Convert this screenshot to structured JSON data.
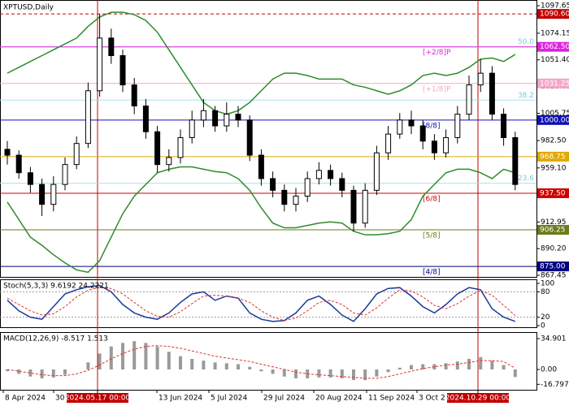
{
  "chart_data": {
    "type": "candlestick",
    "title": "XPTUSD,Daily",
    "ylim": [
      866.06,
      1102.5
    ],
    "yticks": [
      1097.65,
      1074.15,
      {
        "value": 1051.4,
        "label": "1051.40"
      },
      {
        "value": 1028.6,
        "label": "1028.60"
      },
      1005.75,
      {
        "value": 982.5,
        "label": "982.50"
      },
      {
        "value": 959.1,
        "label": "959.10"
      },
      {
        "value": 936.3,
        "label": "936.30"
      },
      912.95,
      {
        "value": 890.2,
        "label": "890.20"
      },
      867.45
    ],
    "open": [
      975,
      970,
      955,
      945,
      928,
      945,
      962,
      980,
      1025,
      1070,
      1055,
      1030,
      1012,
      990,
      962,
      968,
      985,
      1000,
      1008,
      995,
      1005,
      1000,
      970,
      950,
      940,
      928,
      935,
      950,
      957,
      950,
      940,
      912,
      940,
      972,
      988,
      1000,
      995,
      982,
      972,
      985,
      1005,
      1030,
      1040,
      1005,
      985
    ],
    "high": [
      982,
      974,
      960,
      950,
      952,
      968,
      986,
      1032,
      1090.6,
      1078,
      1060,
      1036,
      1018,
      995,
      975,
      992,
      1008,
      1018,
      1012,
      1015,
      1012,
      1004,
      975,
      956,
      945,
      942,
      956,
      964,
      962,
      955,
      944,
      946,
      978,
      995,
      1006,
      1008,
      1000,
      988,
      992,
      1012,
      1038,
      1052,
      1046,
      1010,
      990
    ],
    "low": [
      962,
      950,
      938,
      918,
      922,
      940,
      958,
      976,
      1020,
      1048,
      1024,
      1005,
      984,
      955,
      956,
      963,
      980,
      994,
      990,
      990,
      994,
      965,
      944,
      934,
      922,
      922,
      930,
      945,
      944,
      934,
      905,
      908,
      936,
      966,
      984,
      988,
      975,
      966,
      968,
      980,
      1000,
      1024,
      1000,
      978,
      940
    ],
    "close": [
      970,
      955,
      945,
      928,
      945,
      962,
      980,
      1025,
      1070,
      1055,
      1030,
      1012,
      990,
      962,
      968,
      985,
      1000,
      1008,
      995,
      1005,
      1000,
      970,
      950,
      940,
      928,
      935,
      950,
      957,
      950,
      940,
      912,
      940,
      972,
      988,
      1000,
      995,
      982,
      972,
      985,
      1005,
      1030,
      1040,
      1005,
      985,
      945
    ],
    "bollinger": {
      "color": "#2e8b2e",
      "upper": [
        1040,
        1045,
        1050,
        1055,
        1060,
        1065,
        1070,
        1080,
        1088,
        1092,
        1092,
        1090,
        1085,
        1075,
        1060,
        1045,
        1030,
        1015,
        1008,
        1005,
        1008,
        1015,
        1025,
        1035,
        1040,
        1040,
        1038,
        1035,
        1035,
        1035,
        1030,
        1028,
        1025,
        1022,
        1025,
        1030,
        1038,
        1040,
        1038,
        1040,
        1045,
        1052,
        1053,
        1050,
        1056
      ],
      "lower": [
        930,
        915,
        900,
        893,
        885,
        878,
        872,
        870,
        880,
        900,
        920,
        935,
        945,
        955,
        958,
        960,
        960,
        958,
        956,
        955,
        950,
        940,
        925,
        912,
        908,
        908,
        910,
        912,
        913,
        912,
        905,
        902,
        902,
        903,
        905,
        915,
        935,
        945,
        955,
        958,
        958,
        955,
        950,
        958,
        955
      ]
    },
    "levels": [
      {
        "value": 1090.6,
        "label": "1090.60",
        "color": "#c00000",
        "dashed": true
      },
      {
        "value": 1062.5,
        "label": "1062.50",
        "color": "#e020e0",
        "name": "[+2/8]P"
      },
      {
        "value": 1031.25,
        "label": "1031.25",
        "color": "#f4a8c8",
        "name": "[+1/8]P"
      },
      {
        "value": 1000,
        "label": "1000.00",
        "color": "#1010b0",
        "name": "[8/8]"
      },
      {
        "value": 968.75,
        "label": "968.75",
        "color": "#e0a800"
      },
      {
        "value": 937.5,
        "label": "937.50",
        "color": "#d00000",
        "name": "[6/8]"
      },
      {
        "value": 906.25,
        "label": "906.25",
        "color": "#6b7a1a",
        "name": "[5/8]"
      },
      {
        "value": 875,
        "label": "875.00",
        "color": "#000080",
        "name": "[4/8]"
      }
    ],
    "fib": [
      {
        "ratio": {
          "value": 50,
          "label": "50.0"
        },
        "price": 1062.5
      },
      {
        "ratio": 38.2,
        "price": 1017
      },
      {
        "ratio": 23.6,
        "price": 946
      }
    ],
    "stochastic": {
      "title": "Stoch(5,3,3) 9.6192 24.2221",
      "ylim": [
        -3.8,
        109.6
      ],
      "yticks": [
        100,
        80,
        20,
        0
      ],
      "k": {
        "color": "#1a3a9a",
        "values": [
          60,
          35,
          20,
          15,
          45,
          75,
          85,
          92,
          95,
          80,
          50,
          30,
          20,
          15,
          30,
          55,
          75,
          80,
          60,
          70,
          65,
          30,
          15,
          10,
          12,
          30,
          60,
          70,
          50,
          25,
          10,
          40,
          75,
          88,
          90,
          70,
          45,
          30,
          50,
          75,
          90,
          85,
          40,
          20,
          10
        ]
      },
      "d": {
        "color": "#e03030",
        "values": [
          65,
          50,
          35,
          25,
          28,
          45,
          68,
          84,
          90,
          88,
          75,
          55,
          35,
          22,
          20,
          33,
          52,
          70,
          72,
          70,
          65,
          55,
          35,
          20,
          12,
          18,
          35,
          55,
          60,
          50,
          30,
          25,
          42,
          65,
          85,
          82,
          68,
          48,
          40,
          52,
          70,
          83,
          72,
          48,
          24
        ]
      }
    },
    "macd": {
      "title": "MACD(12,26,9) -8.517 1.513",
      "ylim": [
        -22.95,
        42.25
      ],
      "yticks": [
        34.901,
        {
          "value": 0,
          "label": "0.00"
        },
        -16.797
      ],
      "histogram": {
        "color": "#9a9a9a",
        "values": [
          -2,
          -5,
          -8,
          -10,
          -9,
          -6,
          0,
          8,
          18,
          26,
          30,
          32,
          30,
          26,
          20,
          15,
          12,
          10,
          8,
          7,
          6,
          3,
          -2,
          -5,
          -8,
          -10,
          -10,
          -9,
          -9,
          -10,
          -12,
          -12,
          -8,
          -3,
          2,
          5,
          6,
          6,
          7,
          9,
          12,
          14,
          10,
          5,
          -8.5
        ]
      },
      "signal": {
        "color": "#e03030",
        "values": [
          0,
          -2,
          -4,
          -6,
          -7,
          -7,
          -5,
          -1,
          5,
          12,
          18,
          23,
          26,
          27,
          26,
          24,
          21,
          18,
          15,
          13,
          11,
          9,
          6,
          3,
          0,
          -3,
          -5,
          -6,
          -7,
          -8,
          -9,
          -10,
          -10,
          -8,
          -5,
          -2,
          1,
          3,
          5,
          6,
          8,
          10,
          10,
          9,
          1.5
        ]
      }
    },
    "x_labels": [
      "8 Apr 2024",
      "30",
      "2024.05.17 00:00",
      "13 Jun 2024",
      "5 Jul 2024",
      "29 Jul 2024",
      "20 Aug 2024",
      "11 Sep 2024",
      "3 Oct 2",
      "2024.10.29 00:00"
    ]
  }
}
